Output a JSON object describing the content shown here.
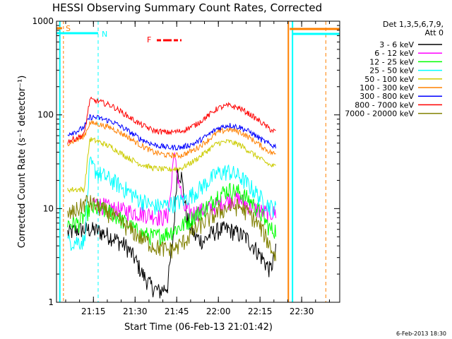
{
  "chart_data": {
    "type": "line",
    "title": "HESSI Observing Summary Count Rates, Corrected",
    "xlabel": "Start Time (06-Feb-13 21:01:42)",
    "ylabel": "Corrected Count Rate (s⁻¹ detector⁻¹)",
    "y_scale": "log",
    "ylim": [
      1,
      1000
    ],
    "xlim_minutes_after_start": [
      0,
      102
    ],
    "x_ticks": [
      {
        "label": "21:15",
        "minutes": 13.3
      },
      {
        "label": "21:30",
        "minutes": 28.3
      },
      {
        "label": "21:45",
        "minutes": 43.3
      },
      {
        "label": "22:00",
        "minutes": 58.3
      },
      {
        "label": "22:15",
        "minutes": 73.3
      },
      {
        "label": "22:30",
        "minutes": 88.3
      }
    ],
    "y_ticks": [
      {
        "label": "1",
        "value": 1
      },
      {
        "label": "10",
        "value": 10
      },
      {
        "label": "100",
        "value": 100
      },
      {
        "label": "1000",
        "value": 1000
      }
    ],
    "legend": {
      "header_line1": "Det 1,3,5,6,7,9,",
      "header_line2": "Att 0",
      "placement": "top-right outside"
    },
    "series": [
      {
        "name": "3 - 6 keV",
        "color": "#000000",
        "x": [
          4,
          8,
          12,
          15,
          20,
          25,
          28,
          31,
          34,
          37,
          40,
          42,
          43.5,
          45,
          47,
          50,
          53,
          56,
          59,
          62,
          65,
          68,
          71,
          74,
          77,
          79
        ],
        "y": [
          5.5,
          6,
          6,
          5.8,
          5,
          4,
          3,
          2,
          1.5,
          1.3,
          1.5,
          5,
          26,
          22,
          8,
          5,
          4.5,
          5.5,
          6,
          6,
          5.5,
          5,
          4,
          3,
          2.2,
          3.5
        ]
      },
      {
        "name": "6 - 12 keV",
        "color": "#ff00ff",
        "x": [
          13,
          16,
          20,
          25,
          30,
          35,
          38,
          40,
          41.5,
          42,
          44,
          46,
          49,
          52,
          55,
          58,
          61,
          64,
          67,
          70,
          73,
          76,
          79
        ],
        "y": [
          12,
          11,
          10,
          9.5,
          9,
          8.5,
          8,
          8.5,
          18,
          40,
          20,
          10,
          9,
          9.5,
          10,
          11,
          12,
          13,
          12,
          10.5,
          9.5,
          9,
          9
        ]
      },
      {
        "name": "12 - 25 keV",
        "color": "#00ff00",
        "x": [
          4,
          8,
          12,
          15,
          20,
          25,
          30,
          35,
          40,
          45,
          50,
          55,
          58,
          62,
          66,
          70,
          74,
          77,
          79
        ],
        "y": [
          7,
          7,
          10,
          10,
          9,
          7,
          5.5,
          5,
          5.5,
          6.5,
          8.5,
          11,
          14,
          16,
          15,
          12,
          8.5,
          6,
          6
        ]
      },
      {
        "name": "25 - 50 keV",
        "color": "#00ffff",
        "x": [
          4,
          8,
          10,
          12,
          15,
          20,
          25,
          30,
          35,
          40,
          45,
          50,
          55,
          58,
          62,
          66,
          70,
          74,
          77,
          79
        ],
        "y": [
          4.5,
          4.5,
          4.5,
          30,
          24,
          20,
          16,
          12.5,
          10.5,
          11,
          12,
          15,
          20,
          24,
          25,
          22,
          17,
          12.5,
          10.5,
          10
        ]
      },
      {
        "name": "50 - 100 keV",
        "color": "#cccc00",
        "x": [
          4,
          8,
          10,
          12,
          15,
          20,
          25,
          30,
          35,
          40,
          45,
          50,
          55,
          58,
          62,
          66,
          70,
          74,
          77,
          79
        ],
        "y": [
          16,
          16,
          16,
          55,
          52,
          45,
          36,
          30,
          27,
          26,
          27,
          33,
          43,
          50,
          52,
          48,
          40,
          33,
          29,
          28
        ]
      },
      {
        "name": "100 - 300 keV",
        "color": "#ff8000",
        "x": [
          4,
          8,
          10,
          12,
          15,
          20,
          25,
          30,
          35,
          40,
          45,
          50,
          55,
          58,
          62,
          66,
          70,
          74,
          77,
          79
        ],
        "y": [
          50,
          55,
          60,
          82,
          80,
          72,
          60,
          48,
          40,
          37,
          37,
          43,
          55,
          65,
          70,
          66,
          56,
          46,
          40,
          38
        ]
      },
      {
        "name": "300 - 800 keV",
        "color": "#0000ff",
        "x": [
          4,
          8,
          10,
          12,
          15,
          20,
          25,
          30,
          35,
          40,
          45,
          50,
          55,
          58,
          62,
          66,
          70,
          74,
          77,
          79
        ],
        "y": [
          63,
          68,
          75,
          95,
          93,
          85,
          70,
          56,
          48,
          45,
          45,
          50,
          62,
          72,
          78,
          74,
          65,
          54,
          48,
          46
        ]
      },
      {
        "name": "800 - 7000 keV",
        "color": "#ff0000",
        "x": [
          4,
          8,
          10,
          12,
          15,
          20,
          25,
          30,
          35,
          40,
          45,
          50,
          55,
          58,
          62,
          66,
          70,
          74,
          77,
          79
        ],
        "y": [
          52,
          58,
          62,
          145,
          140,
          125,
          100,
          80,
          68,
          65,
          67,
          78,
          100,
          118,
          126,
          118,
          100,
          82,
          70,
          66
        ]
      },
      {
        "name": "7000 - 20000 keV",
        "color": "#808000",
        "x": [
          4,
          8,
          11,
          15,
          20,
          25,
          30,
          35,
          40,
          43,
          46,
          50,
          54,
          58,
          62,
          66,
          70,
          74,
          77,
          79
        ],
        "y": [
          8.5,
          10,
          12,
          10.5,
          8.5,
          6.5,
          5,
          4,
          3.6,
          3.8,
          4.5,
          6,
          7.5,
          9,
          10.5,
          10.5,
          8.5,
          6,
          4,
          3
        ]
      }
    ],
    "annotations": {
      "s_marker": "S",
      "n_marker": "N",
      "f_marker": "F",
      "date_stamp": "6-Feb-2013 18:30"
    },
    "colors": {
      "saa_cyan": "#00ffff",
      "night_orange": "#ff8000",
      "flare_red": "#ff0000",
      "axis": "#000000",
      "background": "#ffffff"
    }
  }
}
